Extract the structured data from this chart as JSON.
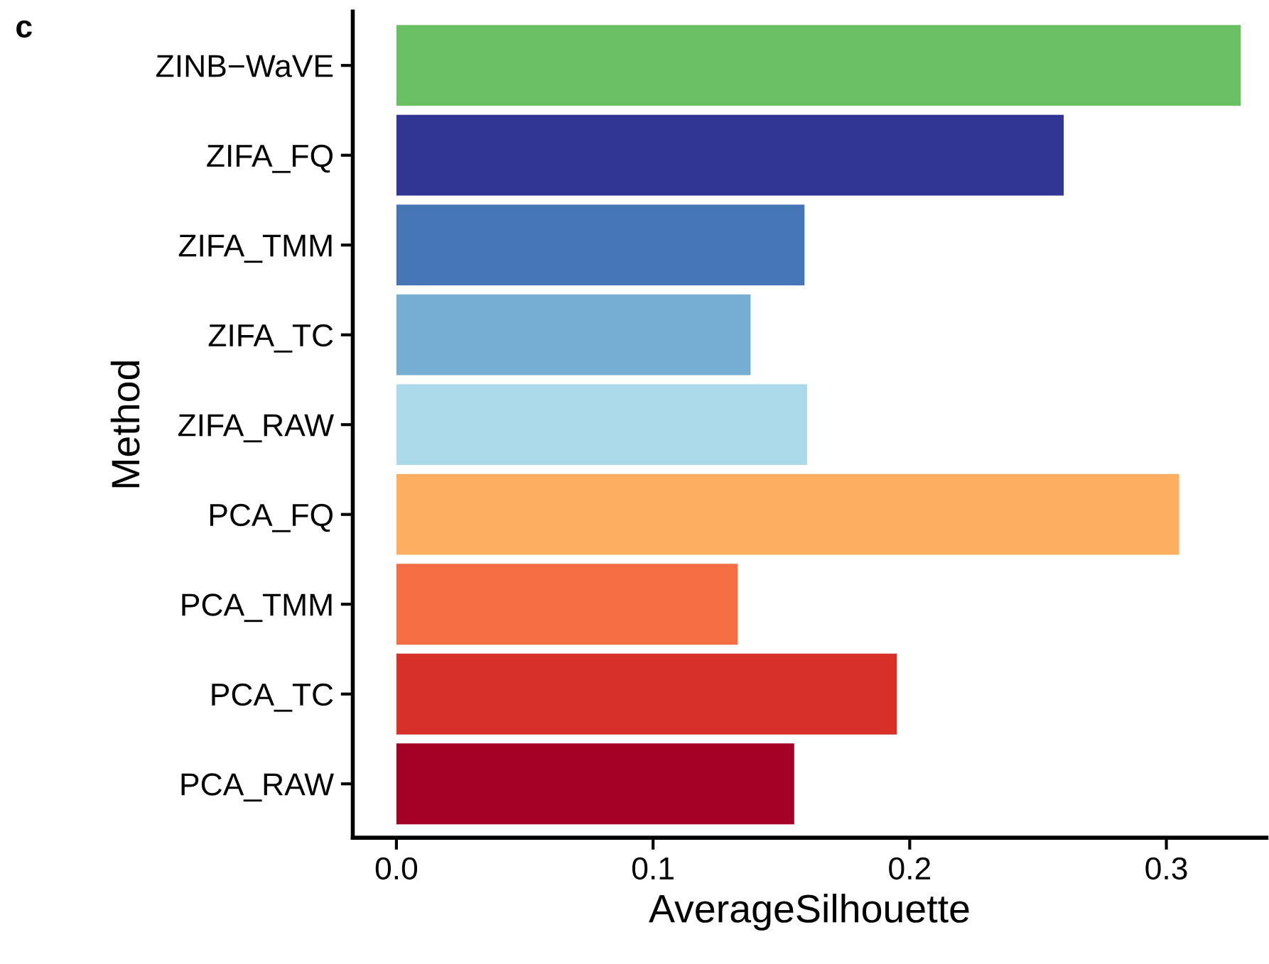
{
  "chart_data": {
    "type": "bar",
    "orientation": "horizontal",
    "xlabel": "AverageSilhouette",
    "ylabel": "Method",
    "annotations": [
      "c"
    ],
    "categories": [
      "ZINB−WaVE",
      "ZIFA_FQ",
      "ZIFA_TMM",
      "ZIFA_TC",
      "ZIFA_RAW",
      "PCA_FQ",
      "PCA_TMM",
      "PCA_TC",
      "PCA_RAW"
    ],
    "values": [
      0.329,
      0.26,
      0.159,
      0.138,
      0.16,
      0.305,
      0.133,
      0.195,
      0.155
    ],
    "colors": [
      "#6abf63",
      "#313695",
      "#4575b4",
      "#74add1",
      "#abd9e9",
      "#fdae61",
      "#f46d43",
      "#d73027",
      "#a50026"
    ],
    "xlim": [
      -0.017,
      0.339
    ],
    "xticks": [
      {
        "value": 0,
        "label": "0.0"
      },
      0.1,
      0.2,
      0.3
    ],
    "grid": false,
    "legend": false
  }
}
